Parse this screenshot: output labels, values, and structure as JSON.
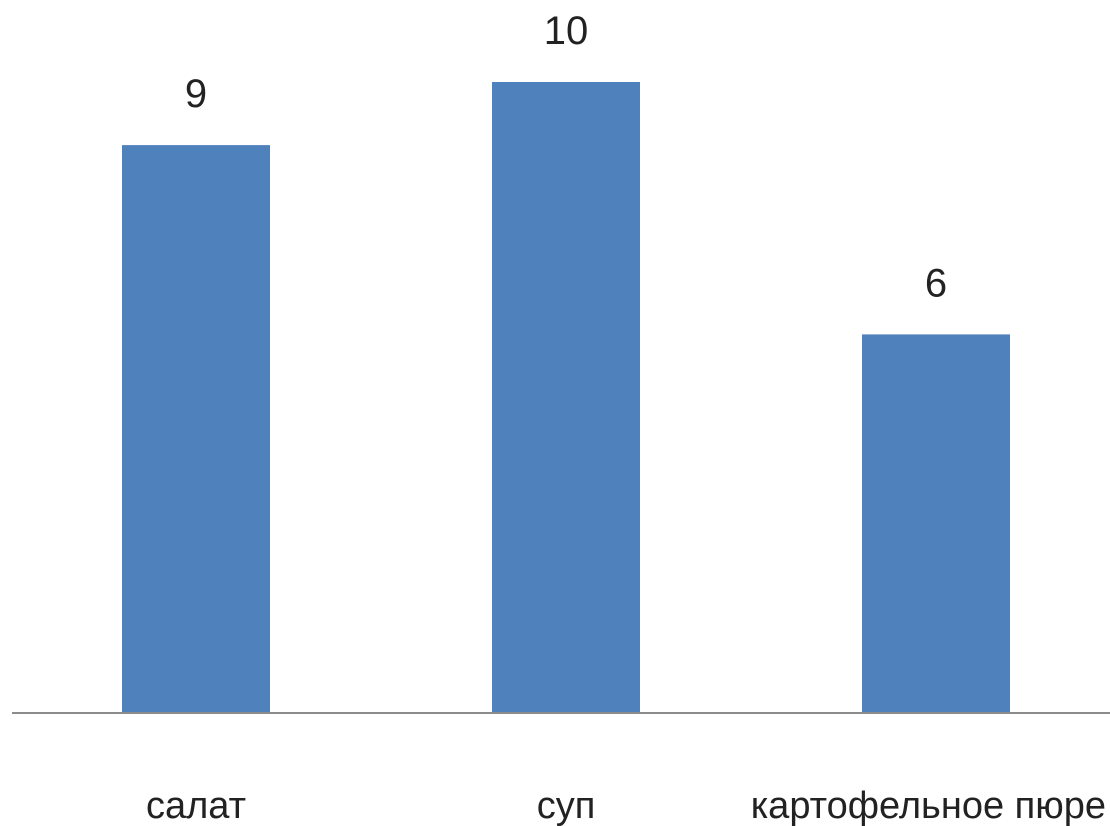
{
  "chart_data": {
    "type": "bar",
    "categories": [
      "салат",
      "суп",
      "картофельное пюре"
    ],
    "values": [
      9,
      10,
      6
    ],
    "data_labels": [
      "9",
      "10",
      "6"
    ],
    "title": "",
    "xlabel": "",
    "ylabel": "",
    "ylim": [
      0,
      10
    ],
    "grid": false,
    "legend": "none",
    "bar_color": "#4f81bd",
    "axis_color": "#8c8c8c"
  }
}
